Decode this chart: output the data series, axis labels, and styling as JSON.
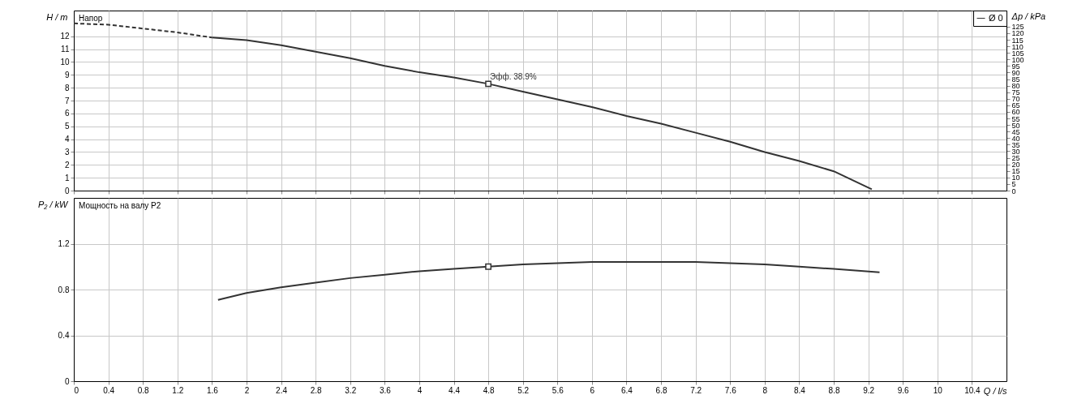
{
  "chart_data": [
    {
      "type": "line",
      "title": "Напор",
      "ylabel": "H / m",
      "y2label": "Δp / kPa",
      "xlim": [
        0,
        10.8
      ],
      "xticks": [
        0,
        0.4,
        0.8,
        1.2,
        1.6,
        2,
        2.4,
        2.8,
        3.2,
        3.6,
        4,
        4.4,
        4.8,
        5.2,
        5.6,
        6,
        6.4,
        6.8,
        7.2,
        7.6,
        8,
        8.4,
        8.8,
        9.2,
        9.6,
        10,
        10.4
      ],
      "ylim": [
        0,
        14
      ],
      "yticks": [
        0,
        1,
        2,
        3,
        4,
        5,
        6,
        7,
        8,
        9,
        10,
        11,
        12
      ],
      "y2lim": [
        0,
        137.3
      ],
      "y2ticks": [
        0,
        5,
        10,
        15,
        20,
        25,
        30,
        35,
        40,
        45,
        50,
        55,
        60,
        65,
        70,
        75,
        80,
        85,
        90,
        95,
        100,
        105,
        110,
        115,
        120,
        125
      ],
      "grid": true,
      "legend": "top right",
      "tick_labels": "y",
      "series": [
        {
          "color": "#333333",
          "line_style": "dashed",
          "marker": "none",
          "x": [
            0,
            0.4,
            0.8,
            1.2,
            1.6
          ],
          "values": [
            13.0,
            12.9,
            12.6,
            12.3,
            11.9
          ]
        },
        {
          "name": "Ø 0",
          "color": "#333333",
          "line_style": "solid",
          "marker": "none",
          "x": [
            1.6,
            2.0,
            2.4,
            2.8,
            3.2,
            3.6,
            4.0,
            4.4,
            4.8,
            5.2,
            5.6,
            6.0,
            6.4,
            6.8,
            7.2,
            7.6,
            8.0,
            8.4,
            8.8,
            9.24
          ],
          "values": [
            11.9,
            11.7,
            11.3,
            10.8,
            10.3,
            9.7,
            9.2,
            8.8,
            8.3,
            7.7,
            7.1,
            6.5,
            5.8,
            5.2,
            4.5,
            3.8,
            3.0,
            2.3,
            1.5,
            0.1
          ]
        },
        {
          "type": "scatter",
          "color": "#333333",
          "marker": "square",
          "x": [
            4.8
          ],
          "values": [
            8.3
          ]
        }
      ],
      "annotations": [
        {
          "text": "Эфф. 38.9%",
          "x": 4.8,
          "y": 8.3
        }
      ]
    },
    {
      "type": "line",
      "title": "Мощность на валу P2",
      "ylabel": "P₂ / kW",
      "xlabel": "Q / l/s",
      "xlim": [
        0,
        10.8
      ],
      "xticks": [
        0,
        0.4,
        0.8,
        1.2,
        1.6,
        2,
        2.4,
        2.8,
        3.2,
        3.6,
        4,
        4.4,
        4.8,
        5.2,
        5.6,
        6,
        6.4,
        6.8,
        7.2,
        7.6,
        8,
        8.4,
        8.8,
        9.2,
        9.6,
        10,
        10.4
      ],
      "ylim": [
        0,
        1.6
      ],
      "yticks": [
        0,
        0.4,
        0.8,
        1.2
      ],
      "grid": true,
      "series": [
        {
          "color": "#333333",
          "line_style": "solid",
          "marker": "none",
          "x": [
            1.67,
            2.0,
            2.4,
            2.8,
            3.2,
            3.6,
            4.0,
            4.4,
            4.8,
            5.2,
            5.6,
            6.0,
            6.4,
            6.8,
            7.2,
            7.6,
            8.0,
            8.4,
            8.8,
            9.33
          ],
          "values": [
            0.71,
            0.77,
            0.82,
            0.86,
            0.9,
            0.93,
            0.96,
            0.98,
            1.0,
            1.02,
            1.03,
            1.04,
            1.04,
            1.04,
            1.04,
            1.03,
            1.02,
            1.0,
            0.98,
            0.95
          ]
        },
        {
          "type": "scatter",
          "color": "#333333",
          "marker": "square",
          "x": [
            4.8
          ],
          "values": [
            1.0
          ]
        }
      ]
    }
  ]
}
